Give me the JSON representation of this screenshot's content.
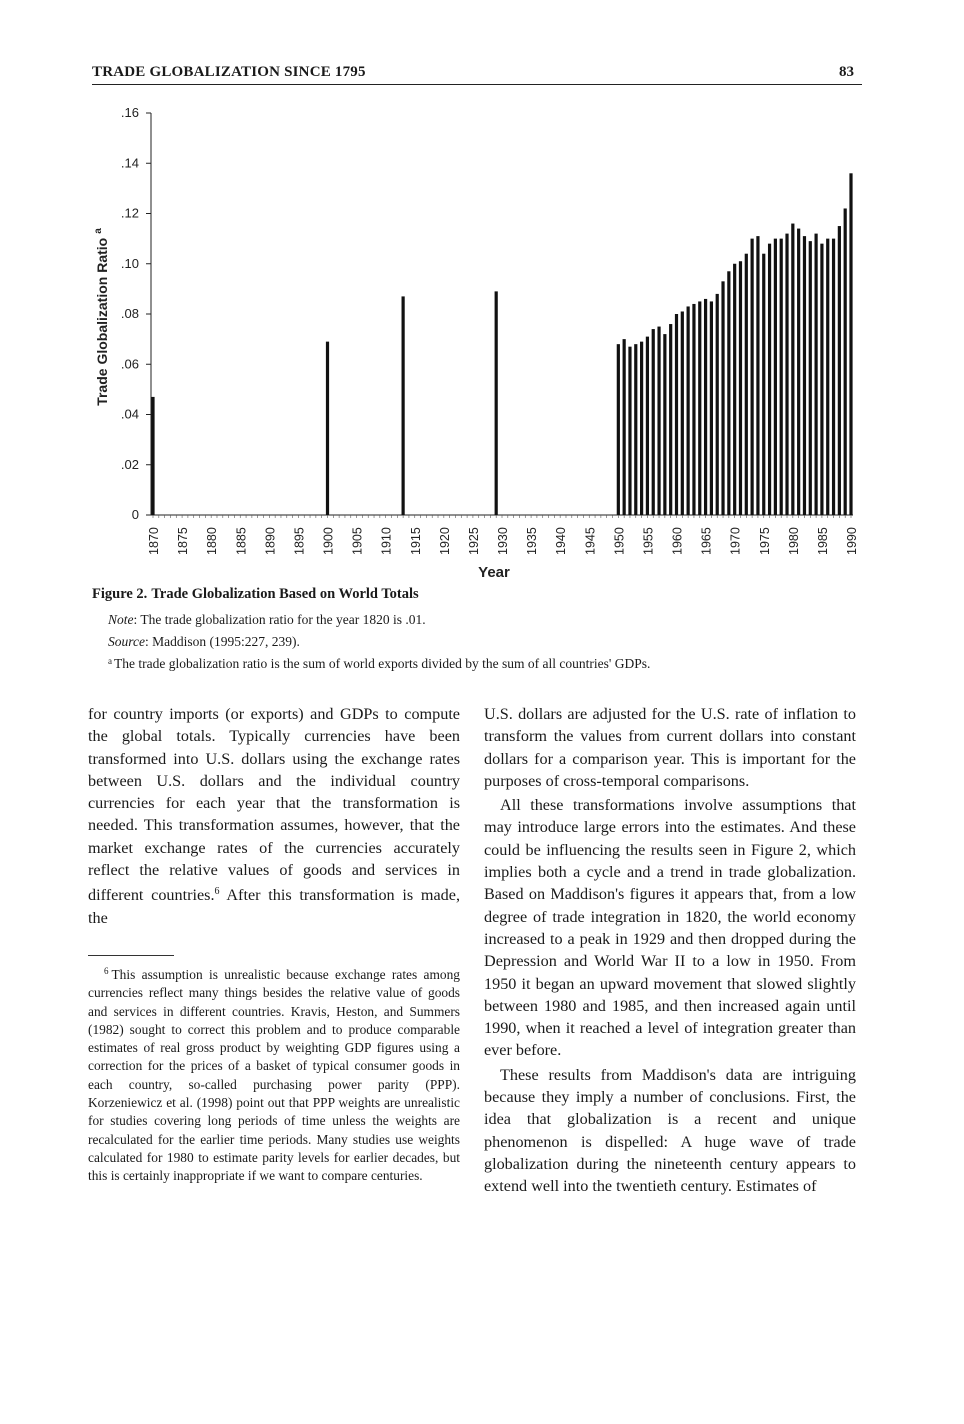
{
  "running_head": {
    "title": "TRADE GLOBALIZATION SINCE 1795",
    "page_number": "83"
  },
  "chart_data": {
    "type": "bar",
    "xlabel": "Year",
    "ylabel": "Trade Globalization Ratio",
    "ylabel_superscript": "a",
    "ylim": [
      0,
      0.16
    ],
    "yticks": [
      ".16",
      ".14",
      ".12",
      ".10",
      ".08",
      ".06",
      ".04",
      ".02",
      "0"
    ],
    "xticks": [
      "1870",
      "1875",
      "1880",
      "1885",
      "1890",
      "1895",
      "1900",
      "1905",
      "1910",
      "1915",
      "1920",
      "1925",
      "1930",
      "1935",
      "1940",
      "1945",
      "1950",
      "1955",
      "1960",
      "1965",
      "1970",
      "1975",
      "1980",
      "1985",
      "1990"
    ],
    "x_range": [
      1870,
      1990
    ],
    "x": [
      1870,
      1900,
      1913,
      1929,
      1950,
      1951,
      1952,
      1953,
      1954,
      1955,
      1956,
      1957,
      1958,
      1959,
      1960,
      1961,
      1962,
      1963,
      1964,
      1965,
      1966,
      1967,
      1968,
      1969,
      1970,
      1971,
      1972,
      1973,
      1974,
      1975,
      1976,
      1977,
      1978,
      1979,
      1980,
      1981,
      1982,
      1983,
      1984,
      1985,
      1986,
      1987,
      1988,
      1989,
      1990
    ],
    "values": [
      0.047,
      0.069,
      0.087,
      0.089,
      0.068,
      0.07,
      0.067,
      0.068,
      0.069,
      0.071,
      0.074,
      0.075,
      0.072,
      0.076,
      0.08,
      0.081,
      0.083,
      0.084,
      0.085,
      0.086,
      0.085,
      0.088,
      0.093,
      0.097,
      0.1,
      0.101,
      0.104,
      0.11,
      0.111,
      0.104,
      0.108,
      0.11,
      0.11,
      0.112,
      0.116,
      0.114,
      0.111,
      0.109,
      0.112,
      0.108,
      0.11,
      0.11,
      0.115,
      0.122,
      0.136
    ]
  },
  "figure": {
    "label": "Figure 2.",
    "title": "Trade Globalization Based on World Totals",
    "note_label": "Note",
    "note_text": ": The trade globalization ratio for the year 1820 is .01.",
    "source_label": "Source",
    "source_text": ": Maddison (1995:227, 239).",
    "footnote_marker": "a",
    "footnote_text": "The trade globalization ratio is the sum of world exports divided by the sum of all countries' GDPs."
  },
  "body": {
    "left_column_text": "for country imports (or exports) and GDPs to compute the global totals. Typically currencies have been transformed into U.S. dollars using the exchange rates between U.S. dollars and the individual country currencies for each year that the transformation is needed. This transformation assumes, however, that the market exchange rates of the currencies accurately reflect the relative values of goods and services in different countries.",
    "left_column_ref": "6",
    "left_column_tail": " After this transformation is made, the",
    "right_paragraph_1": "U.S. dollars are adjusted for the U.S. rate of inflation to transform the values from current dollars into constant dollars for a comparison year. This is important for the purposes of cross-temporal comparisons.",
    "right_paragraph_2": "All these transformations involve assumptions that may introduce large errors into the estimates. And these could be influencing the results seen in Figure 2, which implies both a cycle and a trend in trade globalization. Based on Maddison's figures it appears that, from a low degree of trade integration in 1820, the world economy increased to a peak in 1929 and then dropped during the Depression and World War II to a low in 1950. From 1950 it began an upward movement that slowed slightly between 1980 and 1985, and then increased again until 1990, when it reached a level of integration greater than ever before.",
    "right_paragraph_3": "These results from Maddison's data are intriguing because they imply a number of conclusions. First, the idea that globalization is a recent and unique phenomenon is dispelled: A huge wave of trade globalization during the nineteenth century appears to extend well into the twentieth century. Estimates of"
  },
  "footnote": {
    "number": "6",
    "text": "This assumption is unrealistic because exchange rates among currencies reflect many things besides the relative value of goods and services in different countries. Kravis, Heston, and Summers (1982) sought to correct this problem and to produce comparable estimates of real gross product by weighting GDP figures using a correction for the prices of a basket of typical consumer goods in each country, so-called purchasing power parity (PPP). Korzeniewicz et al. (1998) point out that PPP weights are unrealistic for studies covering long periods of time unless the weights are recalculated for the earlier time periods. Many studies use weights calculated for 1980 to estimate parity levels for earlier decades, but this is certainly inappropriate if we want to compare centuries."
  }
}
